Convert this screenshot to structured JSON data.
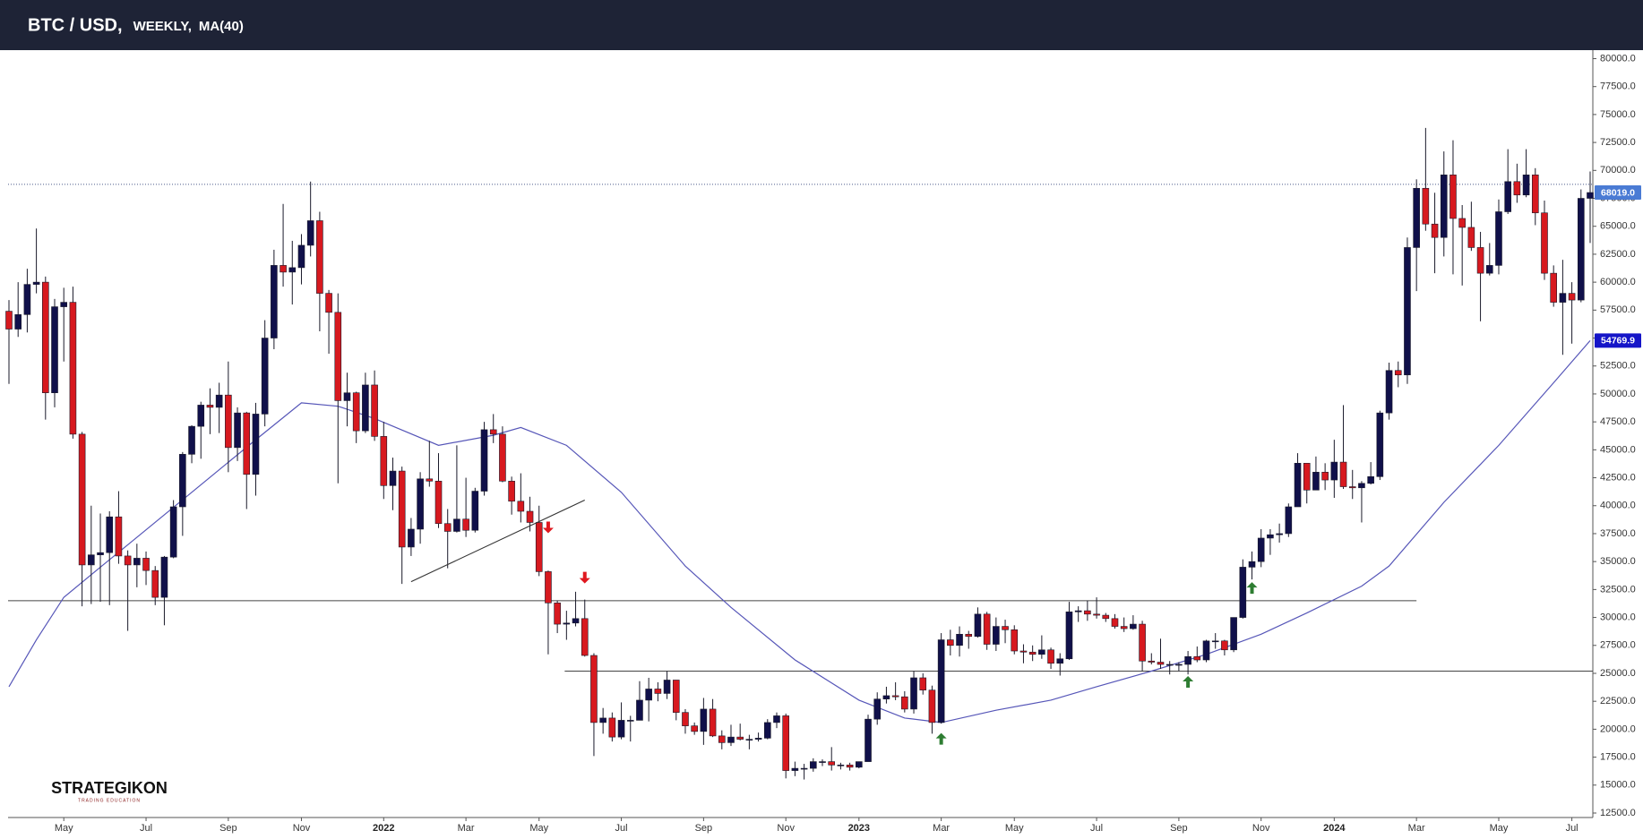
{
  "chart_data": {
    "type": "candlestick",
    "title": "BTC / USD,",
    "subtitle": "WEEKLY,",
    "up_color": "#10104a",
    "down_color": "#d7191f",
    "ylim": [
      12100,
      80760
    ],
    "yticks": [
      {
        "value": 12500,
        "label": "12500.0"
      },
      {
        "value": 15000,
        "label": "15000.0"
      },
      {
        "value": 17500,
        "label": "17500.0"
      },
      {
        "value": 20000,
        "label": "20000.0"
      },
      {
        "value": 22500,
        "label": "22500.0"
      },
      {
        "value": 25000,
        "label": "25000.0"
      },
      {
        "value": 27500,
        "label": "27500.0"
      },
      {
        "value": 30000,
        "label": "30000.0"
      },
      {
        "value": 32500,
        "label": "32500.0"
      },
      {
        "value": 35000,
        "label": "35000.0"
      },
      {
        "value": 37500,
        "label": "37500.0"
      },
      {
        "value": 40000,
        "label": "40000.0"
      },
      {
        "value": 42500,
        "label": "42500.0"
      },
      {
        "value": 45000,
        "label": "45000.0"
      },
      {
        "value": 47500,
        "label": "47500.0"
      },
      {
        "value": 50000,
        "label": "50000.0"
      },
      {
        "value": 52500,
        "label": "52500.0"
      },
      {
        "value": 55000,
        "label": "55000.0"
      },
      {
        "value": 57500,
        "label": "57500.0"
      },
      {
        "value": 60000,
        "label": "60000.0"
      },
      {
        "value": 62500,
        "label": "62500.0"
      },
      {
        "value": 65000,
        "label": "65000.0"
      },
      {
        "value": 67500,
        "label": "67500.0"
      },
      {
        "value": 70000,
        "label": "70000.0"
      },
      {
        "value": 72500,
        "label": "72500.0"
      },
      {
        "value": 75000,
        "label": "75000.0"
      },
      {
        "value": 77500,
        "label": "77500.0"
      },
      {
        "value": 80000,
        "label": "80000.0"
      }
    ],
    "categories": [
      null,
      null,
      null,
      null,
      null,
      null,
      "May",
      null,
      null,
      null,
      null,
      null,
      null,
      null,
      null,
      "Jul",
      null,
      null,
      null,
      null,
      null,
      null,
      null,
      null,
      "Sep",
      null,
      null,
      null,
      null,
      null,
      null,
      null,
      "Nov",
      null,
      null,
      null,
      null,
      null,
      null,
      null,
      null,
      "2022",
      null,
      null,
      null,
      null,
      null,
      null,
      null,
      null,
      "Mar",
      null,
      null,
      null,
      null,
      null,
      null,
      null,
      "May",
      null,
      null,
      null,
      null,
      null,
      null,
      null,
      null,
      "Jul",
      null,
      null,
      null,
      null,
      null,
      null,
      null,
      null,
      "Sep",
      null,
      null,
      null,
      null,
      null,
      null,
      null,
      null,
      "Nov",
      null,
      null,
      null,
      null,
      null,
      null,
      null,
      "2023",
      null,
      null,
      null,
      null,
      null,
      null,
      null,
      null,
      "Mar",
      null,
      null,
      null,
      null,
      null,
      null,
      null,
      "May",
      null,
      null,
      null,
      null,
      null,
      null,
      null,
      null,
      "Jul",
      null,
      null,
      null,
      null,
      null,
      null,
      null,
      null,
      "Sep",
      null,
      null,
      null,
      null,
      null,
      null,
      null,
      null,
      "Nov",
      null,
      null,
      null,
      null,
      null,
      null,
      null,
      "2024",
      null,
      null,
      null,
      null,
      null,
      null,
      null,
      null,
      "Mar",
      null,
      null,
      null,
      null,
      null,
      null,
      null,
      null,
      "May",
      null,
      null,
      null,
      null,
      null,
      null,
      null,
      "Jul",
      null,
      null
    ],
    "ohlc": [
      [
        57400,
        58400,
        50900,
        55800
      ],
      [
        55800,
        60000,
        55100,
        57100
      ],
      [
        57100,
        61200,
        55500,
        59800
      ],
      [
        59800,
        64800,
        59000,
        60000
      ],
      [
        60000,
        60500,
        47700,
        50100
      ],
      [
        50100,
        58500,
        48800,
        57800
      ],
      [
        57800,
        59500,
        52900,
        58200
      ],
      [
        58200,
        59600,
        46000,
        46400
      ],
      [
        46400,
        46600,
        31000,
        34700
      ],
      [
        34700,
        40000,
        31200,
        35600
      ],
      [
        35600,
        39300,
        31400,
        35800
      ],
      [
        35800,
        39500,
        31100,
        39000
      ],
      [
        39000,
        41300,
        34800,
        35500
      ],
      [
        35500,
        36000,
        28800,
        34700
      ],
      [
        34700,
        36600,
        32700,
        35300
      ],
      [
        35300,
        35900,
        32900,
        34200
      ],
      [
        34200,
        34600,
        31100,
        31800
      ],
      [
        31800,
        35500,
        29300,
        35400
      ],
      [
        35400,
        40500,
        35300,
        39900
      ],
      [
        39900,
        44800,
        37300,
        44600
      ],
      [
        44600,
        47200,
        43800,
        47100
      ],
      [
        47100,
        49300,
        44200,
        49000
      ],
      [
        49000,
        50500,
        46400,
        48800
      ],
      [
        48800,
        51000,
        46500,
        49900
      ],
      [
        49900,
        52900,
        43000,
        45200
      ],
      [
        45200,
        48800,
        44000,
        48300
      ],
      [
        48300,
        48400,
        39700,
        42800
      ],
      [
        42800,
        49200,
        40900,
        48200
      ],
      [
        48200,
        56600,
        47100,
        55000
      ],
      [
        55000,
        62900,
        54000,
        61500
      ],
      [
        61500,
        67000,
        59600,
        60900
      ],
      [
        60900,
        63700,
        58000,
        61300
      ],
      [
        61300,
        64300,
        59800,
        63300
      ],
      [
        63300,
        69000,
        62300,
        65500
      ],
      [
        65500,
        66300,
        55600,
        59000
      ],
      [
        59000,
        59300,
        53600,
        57300
      ],
      [
        57300,
        59000,
        42000,
        49400
      ],
      [
        49400,
        51900,
        47100,
        50100
      ],
      [
        50100,
        50200,
        45600,
        46700
      ],
      [
        46700,
        51900,
        46500,
        50800
      ],
      [
        50800,
        52100,
        45800,
        46200
      ],
      [
        46200,
        47500,
        40600,
        41800
      ],
      [
        41800,
        44300,
        39600,
        43100
      ],
      [
        43100,
        43500,
        33000,
        36300
      ],
      [
        36300,
        38900,
        35500,
        37900
      ],
      [
        37900,
        43000,
        36600,
        42400
      ],
      [
        42400,
        45800,
        41700,
        42200
      ],
      [
        42200,
        44700,
        38000,
        38400
      ],
      [
        38400,
        39700,
        34400,
        37700
      ],
      [
        37700,
        45400,
        37600,
        38800
      ],
      [
        38800,
        42500,
        37200,
        37800
      ],
      [
        37800,
        41600,
        37600,
        41300
      ],
      [
        41300,
        47500,
        40900,
        46800
      ],
      [
        46800,
        48200,
        45600,
        46400
      ],
      [
        46400,
        47100,
        42100,
        42200
      ],
      [
        42200,
        42600,
        39200,
        40400
      ],
      [
        40400,
        42900,
        38500,
        39500
      ],
      [
        39500,
        40800,
        37700,
        38500
      ],
      [
        38500,
        40000,
        33700,
        34100
      ],
      [
        34100,
        34200,
        26700,
        31300
      ],
      [
        31300,
        31500,
        28600,
        29400
      ],
      [
        29400,
        30600,
        28000,
        29500
      ],
      [
        29500,
        32300,
        29200,
        29900
      ],
      [
        29900,
        31600,
        26500,
        26600
      ],
      [
        26600,
        26800,
        17600,
        20600
      ],
      [
        20600,
        21900,
        19600,
        21000
      ],
      [
        21000,
        21500,
        18900,
        19300
      ],
      [
        19300,
        22400,
        19100,
        20800
      ],
      [
        20800,
        21200,
        18900,
        20800
      ],
      [
        20800,
        24300,
        20800,
        22600
      ],
      [
        22600,
        24600,
        20700,
        23600
      ],
      [
        23600,
        24200,
        22500,
        23200
      ],
      [
        23200,
        25200,
        22700,
        24400
      ],
      [
        24400,
        24400,
        20800,
        21500
      ],
      [
        21500,
        21800,
        19600,
        20300
      ],
      [
        20300,
        20600,
        19500,
        19800
      ],
      [
        19800,
        22800,
        18600,
        21800
      ],
      [
        21800,
        22700,
        19300,
        19400
      ],
      [
        19400,
        19900,
        18200,
        18800
      ],
      [
        18800,
        20400,
        18500,
        19300
      ],
      [
        19300,
        20500,
        19000,
        19100
      ],
      [
        19100,
        19500,
        18200,
        19100
      ],
      [
        19100,
        19700,
        18900,
        19200
      ],
      [
        19200,
        20900,
        19100,
        20600
      ],
      [
        20600,
        21500,
        20100,
        21200
      ],
      [
        21200,
        21400,
        15600,
        16300
      ],
      [
        16300,
        17100,
        15800,
        16500
      ],
      [
        16500,
        16900,
        15500,
        16500
      ],
      [
        16500,
        17400,
        16200,
        17100
      ],
      [
        17100,
        17300,
        16700,
        17100
      ],
      [
        17100,
        18400,
        16300,
        16800
      ],
      [
        16800,
        17000,
        16400,
        16800
      ],
      [
        16800,
        17000,
        16300,
        16600
      ],
      [
        16600,
        17100,
        16500,
        17100
      ],
      [
        17100,
        21300,
        17100,
        20900
      ],
      [
        20900,
        23300,
        20400,
        22700
      ],
      [
        22700,
        23800,
        22300,
        23000
      ],
      [
        23000,
        24200,
        22600,
        22900
      ],
      [
        22900,
        23400,
        21500,
        21800
      ],
      [
        21800,
        25200,
        21400,
        24600
      ],
      [
        24600,
        25000,
        23100,
        23500
      ],
      [
        23500,
        23900,
        19600,
        20600
      ],
      [
        20600,
        28600,
        20500,
        28000
      ],
      [
        28000,
        28900,
        26600,
        27500
      ],
      [
        27500,
        29200,
        26500,
        28500
      ],
      [
        28500,
        28800,
        27200,
        28300
      ],
      [
        28300,
        30900,
        28200,
        30300
      ],
      [
        30300,
        30500,
        27100,
        27600
      ],
      [
        27600,
        30000,
        27000,
        29200
      ],
      [
        29200,
        29800,
        27700,
        28900
      ],
      [
        28900,
        29300,
        26700,
        27000
      ],
      [
        27000,
        27600,
        25900,
        26900
      ],
      [
        26900,
        27500,
        26100,
        26700
      ],
      [
        26700,
        28400,
        26300,
        27100
      ],
      [
        27100,
        27300,
        25400,
        25900
      ],
      [
        25900,
        26800,
        24800,
        26300
      ],
      [
        26300,
        31400,
        26200,
        30500
      ],
      [
        30500,
        31000,
        29600,
        30600
      ],
      [
        30600,
        31500,
        29700,
        30300
      ],
      [
        30300,
        31800,
        29900,
        30200
      ],
      [
        30200,
        30400,
        29600,
        29900
      ],
      [
        29900,
        30300,
        29000,
        29200
      ],
      [
        29200,
        30000,
        28700,
        29000
      ],
      [
        29000,
        30200,
        28900,
        29400
      ],
      [
        29400,
        29700,
        25200,
        26100
      ],
      [
        26100,
        26800,
        25800,
        26000
      ],
      [
        26000,
        28100,
        25400,
        25800
      ],
      [
        25800,
        26100,
        24900,
        25800
      ],
      [
        25800,
        26000,
        25200,
        25800
      ],
      [
        25800,
        27000,
        24900,
        26500
      ],
      [
        26500,
        27400,
        26000,
        26200
      ],
      [
        26200,
        28000,
        26000,
        27900
      ],
      [
        27900,
        28600,
        27200,
        27900
      ],
      [
        27900,
        28000,
        26600,
        27100
      ],
      [
        27100,
        30000,
        26900,
        30000
      ],
      [
        30000,
        35200,
        29900,
        34500
      ],
      [
        34500,
        35900,
        33400,
        35000
      ],
      [
        35000,
        37900,
        34500,
        37100
      ],
      [
        37100,
        37900,
        35600,
        37400
      ],
      [
        37400,
        38400,
        36700,
        37500
      ],
      [
        37500,
        40200,
        37200,
        39900
      ],
      [
        39900,
        44700,
        39900,
        43800
      ],
      [
        43800,
        43800,
        40200,
        41400
      ],
      [
        41400,
        44400,
        41400,
        43000
      ],
      [
        43000,
        43800,
        41400,
        42300
      ],
      [
        42300,
        45900,
        40700,
        43900
      ],
      [
        43900,
        49000,
        41500,
        41700
      ],
      [
        41700,
        43200,
        40600,
        41600
      ],
      [
        41600,
        42200,
        38500,
        42000
      ],
      [
        42000,
        43900,
        41900,
        42600
      ],
      [
        42600,
        48500,
        42300,
        48300
      ],
      [
        48300,
        52800,
        47700,
        52100
      ],
      [
        52100,
        52900,
        50600,
        51700
      ],
      [
        51700,
        64000,
        50900,
        63100
      ],
      [
        63100,
        69200,
        59200,
        68400
      ],
      [
        68400,
        73800,
        64600,
        65200
      ],
      [
        65200,
        68000,
        60800,
        64000
      ],
      [
        64000,
        71700,
        62300,
        69600
      ],
      [
        69600,
        72700,
        60700,
        65700
      ],
      [
        65700,
        66900,
        59700,
        64900
      ],
      [
        64900,
        67200,
        62800,
        63100
      ],
      [
        63100,
        64500,
        56500,
        60800
      ],
      [
        60800,
        63500,
        60600,
        61500
      ],
      [
        61500,
        67400,
        60700,
        66300
      ],
      [
        66300,
        71900,
        66100,
        69000
      ],
      [
        69000,
        70600,
        67100,
        67800
      ],
      [
        67800,
        71900,
        67600,
        69600
      ],
      [
        69600,
        70200,
        65100,
        66200
      ],
      [
        66200,
        67300,
        60200,
        60800
      ],
      [
        60800,
        61500,
        57800,
        58200
      ],
      [
        58200,
        62000,
        53500,
        59000
      ],
      [
        59000,
        60000,
        54500,
        58400
      ],
      [
        58400,
        68300,
        58200,
        67500
      ],
      [
        67500,
        69900,
        63500,
        68019
      ]
    ],
    "ma": {
      "name": "MA(40)",
      "color": "#5656b8",
      "x": [
        0,
        3,
        6,
        10,
        13,
        20,
        27,
        32,
        36,
        40,
        47,
        53,
        56,
        61,
        67,
        74,
        79,
        86,
        93,
        98,
        102,
        108,
        114,
        119,
        125,
        131,
        137,
        142,
        148,
        151,
        157,
        163,
        169,
        173
      ],
      "values": [
        23800,
        28000,
        31800,
        34500,
        36500,
        41200,
        45900,
        49200,
        48900,
        47800,
        45400,
        46300,
        47000,
        45400,
        41200,
        34600,
        30900,
        26200,
        22600,
        21000,
        20600,
        21700,
        22600,
        23800,
        25200,
        26700,
        28500,
        30400,
        32800,
        34600,
        40300,
        45400,
        51000,
        54769.9
      ]
    },
    "levels": [
      {
        "value": 31500,
        "from": 0,
        "to": 154
      },
      {
        "value": 25200,
        "from": 61,
        "to": 174
      }
    ],
    "trendline": {
      "x": [
        44,
        63
      ],
      "values": [
        33200,
        40500
      ]
    },
    "arrows": [
      {
        "x": 59,
        "value": 38100,
        "color": "#e0181f"
      },
      {
        "x": 63,
        "value": 33600,
        "color": "#e0181f"
      },
      {
        "x": 102,
        "value": 19100,
        "color": "#2e7d32"
      },
      {
        "x": 129,
        "value": 24200,
        "color": "#2e7d32"
      },
      {
        "x": 136,
        "value": 32600,
        "color": "#2e7d32"
      }
    ],
    "dotted_level": 68750,
    "last_price": {
      "value": 68019,
      "label": "68019.0",
      "color": "#4a7bd4"
    },
    "ma_last": {
      "value": 54769.9,
      "color": "#1515c8"
    },
    "logo": {
      "name": "STRATEGIKON",
      "tagline": "TRADING EDUCATION"
    }
  }
}
